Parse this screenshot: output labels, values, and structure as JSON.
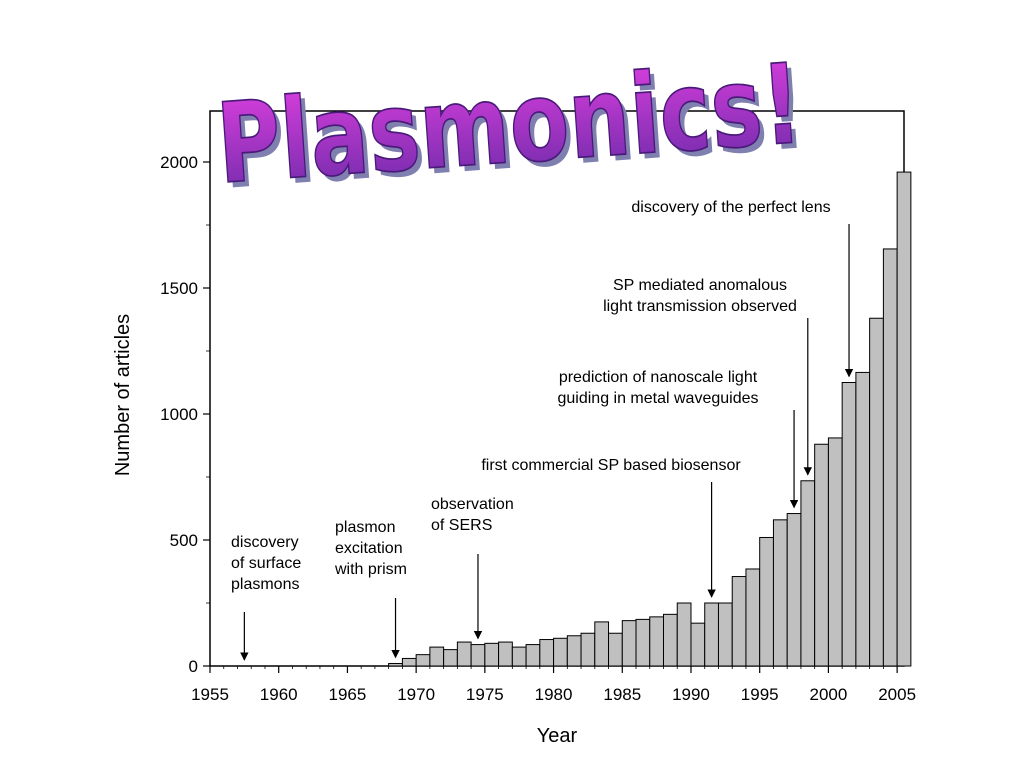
{
  "headline": "Plasmonics!",
  "colors": {
    "bar_fill": "#c0c0c0",
    "bar_stroke": "#000000",
    "headline_top": "#e040e0",
    "headline_bottom": "#6a2aa8",
    "headline_shadow": "#8080b0"
  },
  "chart_data": {
    "type": "bar",
    "title": "",
    "xlabel": "Year",
    "ylabel": "Number of articles",
    "xlim": [
      1955,
      2005.5
    ],
    "ylim": [
      0,
      2000
    ],
    "xticks": [
      1955,
      1960,
      1965,
      1970,
      1975,
      1980,
      1985,
      1990,
      1995,
      2000,
      2005
    ],
    "yticks": [
      0,
      500,
      1000,
      1500,
      2000
    ],
    "grid": false,
    "legend": "none",
    "series": [
      {
        "x": [
          1968,
          1969,
          1970,
          1971,
          1972,
          1973,
          1974,
          1975,
          1976,
          1977,
          1978,
          1979,
          1980,
          1981,
          1982,
          1983,
          1984,
          1985,
          1986,
          1987,
          1988,
          1989,
          1990,
          1991,
          1992,
          1993,
          1994,
          1995,
          1996,
          1997,
          1998,
          1999,
          2000,
          2001,
          2002,
          2003,
          2004,
          2005
        ],
        "values": [
          10,
          30,
          45,
          75,
          65,
          95,
          85,
          90,
          95,
          75,
          85,
          105,
          110,
          120,
          130,
          175,
          130,
          180,
          185,
          195,
          205,
          250,
          170,
          250,
          250,
          355,
          385,
          510,
          580,
          605,
          735,
          880,
          905,
          1125,
          1165,
          1380,
          1655,
          1960
        ]
      }
    ],
    "annotations": [
      {
        "lines": [
          "discovery",
          "of surface",
          "plasmons"
        ],
        "arrow_x": 1957,
        "arrow_y": 0
      },
      {
        "lines": [
          "plasmon",
          "excitation",
          "with prism"
        ],
        "arrow_x": 1968,
        "arrow_y": 10
      },
      {
        "lines": [
          "observation",
          "of SERS"
        ],
        "arrow_x": 1974,
        "arrow_y": 85
      },
      {
        "lines": [
          "first commercial SP based biosensor"
        ],
        "arrow_x": 1991,
        "arrow_y": 250
      },
      {
        "lines": [
          "prediction of nanoscale light",
          "guiding in metal  waveguides"
        ],
        "arrow_x": 1997,
        "arrow_y": 605
      },
      {
        "lines": [
          "SP mediated anomalous",
          "light transmission observed"
        ],
        "arrow_x": 1998,
        "arrow_y": 735
      },
      {
        "lines": [
          "discovery of the perfect lens"
        ],
        "arrow_x": 2001,
        "arrow_y": 1125
      }
    ]
  }
}
